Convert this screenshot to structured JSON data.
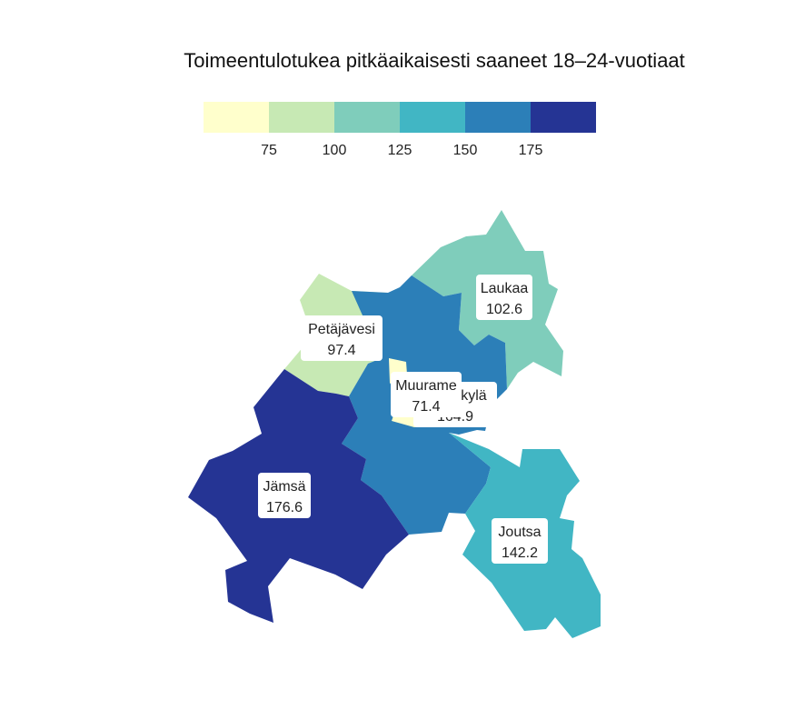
{
  "title": "Toimeentulotukea pitkäaikaisesti saaneet 18–24-vuotiaat",
  "legend": {
    "colors": [
      "#ffffcc",
      "#c7e9b4",
      "#7fcdbb",
      "#41b6c4",
      "#2c7fb8",
      "#253494"
    ],
    "ticks": [
      "75",
      "100",
      "125",
      "150",
      "175"
    ]
  },
  "regions": [
    {
      "id": "laukaa",
      "name": "Laukaa",
      "value": "102.6",
      "color": "#7fcdbb"
    },
    {
      "id": "petajavesi",
      "name": "Petäjävesi",
      "value": "97.4",
      "color": "#c7e9b4"
    },
    {
      "id": "jyvaskyla",
      "name": "Jyväskylä",
      "value": "164.9",
      "color": "#2c7fb8"
    },
    {
      "id": "muurame",
      "name": "Muurame",
      "value": "71.4",
      "color": "#ffffcc"
    },
    {
      "id": "jamsa",
      "name": "Jämsä",
      "value": "176.6",
      "color": "#253494"
    },
    {
      "id": "joutsa",
      "name": "Joutsa",
      "value": "142.2",
      "color": "#41b6c4"
    }
  ],
  "labels": [
    {
      "ref": "laukaa",
      "name": "Laukaa",
      "value": "102.6"
    },
    {
      "ref": "petajavesi",
      "name": "Petäjävesi",
      "value": "97.4"
    },
    {
      "ref": "jyvaskyla",
      "name": "Jyväskylä",
      "value": "164.9"
    },
    {
      "ref": "muurame",
      "name": "Muurame",
      "value": "71.4"
    },
    {
      "ref": "jamsa",
      "name": "Jämsä",
      "value": "176.6"
    },
    {
      "ref": "joutsa",
      "name": "Joutsa",
      "value": "142.2"
    }
  ]
}
